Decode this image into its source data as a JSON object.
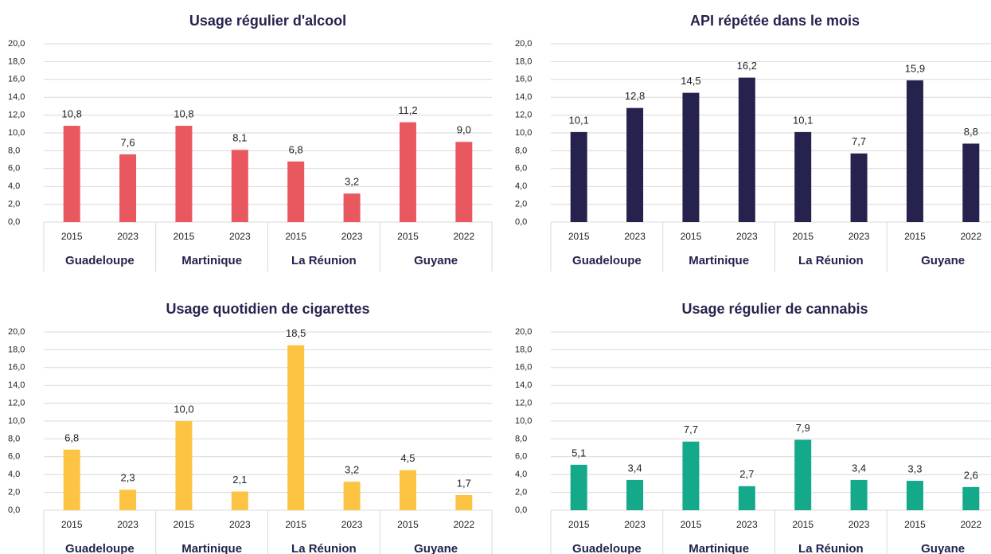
{
  "chart_data": [
    {
      "type": "bar",
      "title": "Usage régulier d'alcool",
      "categories": [
        "2015",
        "2023",
        "2015",
        "2023",
        "2015",
        "2023",
        "2015",
        "2022"
      ],
      "groups": [
        "Guadeloupe",
        "Martinique",
        "La Réunion",
        "Guyane"
      ],
      "values": [
        10.8,
        7.6,
        10.8,
        8.1,
        6.8,
        3.2,
        11.2,
        9.0
      ],
      "value_labels": [
        "10,8",
        "7,6",
        "10,8",
        "8,1",
        "6,8",
        "3,2",
        "11,2",
        "9,0"
      ],
      "color": "#e9585f",
      "ylim": [
        0,
        20
      ],
      "yticks": [
        {
          "value": 0,
          "label": "0,0"
        },
        {
          "value": 2,
          "label": "2,0"
        },
        {
          "value": 4,
          "label": "4,0"
        },
        {
          "value": 6,
          "label": "6,0"
        },
        {
          "value": 8,
          "label": "8,0"
        },
        {
          "value": 10,
          "label": "10,0"
        },
        {
          "value": 12,
          "label": "12,0"
        },
        {
          "value": 14,
          "label": "14,0"
        },
        {
          "value": 16,
          "label": "16,0"
        },
        {
          "value": 18,
          "label": "18,0"
        },
        {
          "value": 20,
          "label": "20,0"
        }
      ],
      "grid": true
    },
    {
      "type": "bar",
      "title": "API répétée dans le mois",
      "categories": [
        "2015",
        "2023",
        "2015",
        "2023",
        "2015",
        "2023",
        "2015",
        "2022"
      ],
      "groups": [
        "Guadeloupe",
        "Martinique",
        "La Réunion",
        "Guyane"
      ],
      "values": [
        10.1,
        12.8,
        14.5,
        16.2,
        10.1,
        7.7,
        15.9,
        8.8
      ],
      "value_labels": [
        "10,1",
        "12,8",
        "14,5",
        "16,2",
        "10,1",
        "7,7",
        "15,9",
        "8,8"
      ],
      "color": "#25234d",
      "ylim": [
        0,
        20
      ],
      "yticks": [
        {
          "value": 0,
          "label": "0,0"
        },
        {
          "value": 2,
          "label": "2,0"
        },
        {
          "value": 4,
          "label": "4,0"
        },
        {
          "value": 6,
          "label": "6,0"
        },
        {
          "value": 8,
          "label": "8,0"
        },
        {
          "value": 10,
          "label": "10,0"
        },
        {
          "value": 12,
          "label": "12,0"
        },
        {
          "value": 14,
          "label": "14,0"
        },
        {
          "value": 16,
          "label": "16,0"
        },
        {
          "value": 18,
          "label": "18,0"
        },
        {
          "value": 20,
          "label": "20,0"
        }
      ],
      "grid": true
    },
    {
      "type": "bar",
      "title": "Usage quotidien de cigarettes",
      "categories": [
        "2015",
        "2023",
        "2015",
        "2023",
        "2015",
        "2023",
        "2015",
        "2022"
      ],
      "groups": [
        "Guadeloupe",
        "Martinique",
        "La Réunion",
        "Guyane"
      ],
      "values": [
        6.8,
        2.3,
        10.0,
        2.1,
        18.5,
        3.2,
        4.5,
        1.7
      ],
      "value_labels": [
        "6,8",
        "2,3",
        "10,0",
        "2,1",
        "18,5",
        "3,2",
        "4,5",
        "1,7"
      ],
      "color": "#fdc443",
      "ylim": [
        0,
        20
      ],
      "yticks": [
        {
          "value": 0,
          "label": "0,0"
        },
        {
          "value": 2,
          "label": "2,0"
        },
        {
          "value": 4,
          "label": "4,0"
        },
        {
          "value": 6,
          "label": "6,0"
        },
        {
          "value": 8,
          "label": "8,0"
        },
        {
          "value": 10,
          "label": "10,0"
        },
        {
          "value": 12,
          "label": "12,0"
        },
        {
          "value": 14,
          "label": "14,0"
        },
        {
          "value": 16,
          "label": "16,0"
        },
        {
          "value": 18,
          "label": "18,0"
        },
        {
          "value": 20,
          "label": "20,0"
        }
      ],
      "grid": true
    },
    {
      "type": "bar",
      "title": "Usage régulier de cannabis",
      "categories": [
        "2015",
        "2023",
        "2015",
        "2023",
        "2015",
        "2023",
        "2015",
        "2022"
      ],
      "groups": [
        "Guadeloupe",
        "Martinique",
        "La Réunion",
        "Guyane"
      ],
      "values": [
        5.1,
        3.4,
        7.7,
        2.7,
        7.9,
        3.4,
        3.3,
        2.6
      ],
      "value_labels": [
        "5,1",
        "3,4",
        "7,7",
        "2,7",
        "7,9",
        "3,4",
        "3,3",
        "2,6"
      ],
      "color": "#14a98a",
      "ylim": [
        0,
        20
      ],
      "yticks": [
        {
          "value": 0,
          "label": "0,0"
        },
        {
          "value": 2,
          "label": "2,0"
        },
        {
          "value": 4,
          "label": "4,0"
        },
        {
          "value": 6,
          "label": "6,0"
        },
        {
          "value": 8,
          "label": "8,0"
        },
        {
          "value": 10,
          "label": "10,0"
        },
        {
          "value": 12,
          "label": "12,0"
        },
        {
          "value": 14,
          "label": "14,0"
        },
        {
          "value": 16,
          "label": "16,0"
        },
        {
          "value": 18,
          "label": "18,0"
        },
        {
          "value": 20,
          "label": "20,0"
        }
      ],
      "grid": true
    }
  ]
}
